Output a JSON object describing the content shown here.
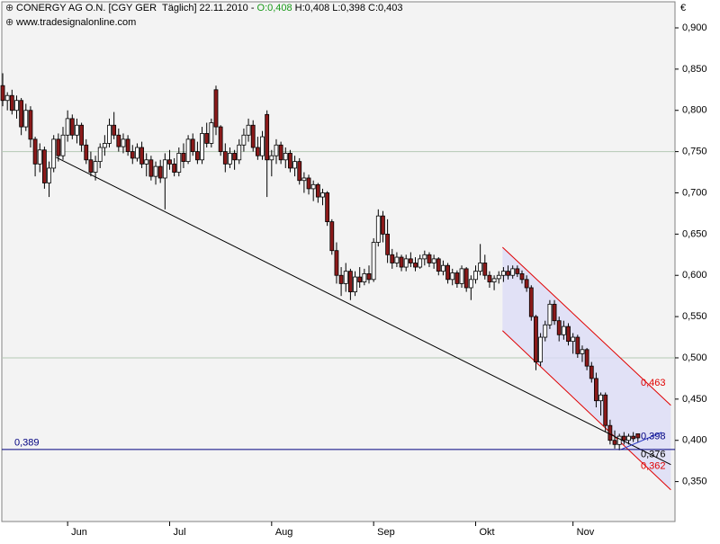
{
  "chart_data": {
    "type": "candlestick",
    "title": "CONERGY AG O.N. [CGY GER  Täglich] 22.11.2010 -",
    "title_open": "O:0,408",
    "title_rest": "H:0,408 L:0,398 C:0,403",
    "subtitle": "www.tradesignalonline.com",
    "currency": "€",
    "up_color": "#ffffff",
    "down_color": "#8b1a1a",
    "ohlc": [
      [
        0.83,
        0.845,
        0.805,
        0.812
      ],
      [
        0.812,
        0.822,
        0.8,
        0.818
      ],
      [
        0.818,
        0.825,
        0.795,
        0.8
      ],
      [
        0.8,
        0.818,
        0.79,
        0.812
      ],
      [
        0.812,
        0.815,
        0.77,
        0.78
      ],
      [
        0.78,
        0.808,
        0.775,
        0.8
      ],
      [
        0.8,
        0.805,
        0.755,
        0.765
      ],
      [
        0.765,
        0.768,
        0.72,
        0.735
      ],
      [
        0.735,
        0.76,
        0.725,
        0.752
      ],
      [
        0.752,
        0.756,
        0.705,
        0.712
      ],
      [
        0.712,
        0.738,
        0.695,
        0.73
      ],
      [
        0.73,
        0.77,
        0.725,
        0.765
      ],
      [
        0.765,
        0.772,
        0.738,
        0.745
      ],
      [
        0.745,
        0.78,
        0.74,
        0.77
      ],
      [
        0.77,
        0.8,
        0.762,
        0.79
      ],
      [
        0.79,
        0.795,
        0.765,
        0.77
      ],
      [
        0.77,
        0.79,
        0.76,
        0.782
      ],
      [
        0.782,
        0.785,
        0.75,
        0.758
      ],
      [
        0.758,
        0.765,
        0.735,
        0.74
      ],
      [
        0.74,
        0.75,
        0.72,
        0.725
      ],
      [
        0.725,
        0.745,
        0.715,
        0.738
      ],
      [
        0.738,
        0.76,
        0.73,
        0.755
      ],
      [
        0.755,
        0.77,
        0.745,
        0.76
      ],
      [
        0.76,
        0.79,
        0.755,
        0.782
      ],
      [
        0.782,
        0.798,
        0.765,
        0.77
      ],
      [
        0.77,
        0.778,
        0.75,
        0.756
      ],
      [
        0.756,
        0.772,
        0.748,
        0.765
      ],
      [
        0.765,
        0.77,
        0.745,
        0.75
      ],
      [
        0.75,
        0.758,
        0.735,
        0.742
      ],
      [
        0.742,
        0.76,
        0.738,
        0.755
      ],
      [
        0.755,
        0.762,
        0.73,
        0.735
      ],
      [
        0.735,
        0.748,
        0.72,
        0.74
      ],
      [
        0.74,
        0.745,
        0.715,
        0.72
      ],
      [
        0.72,
        0.738,
        0.71,
        0.732
      ],
      [
        0.732,
        0.74,
        0.712,
        0.718
      ],
      [
        0.718,
        0.748,
        0.68,
        0.74
      ],
      [
        0.74,
        0.752,
        0.728,
        0.735
      ],
      [
        0.735,
        0.742,
        0.72,
        0.725
      ],
      [
        0.725,
        0.755,
        0.72,
        0.748
      ],
      [
        0.748,
        0.76,
        0.73,
        0.738
      ],
      [
        0.738,
        0.77,
        0.735,
        0.765
      ],
      [
        0.765,
        0.772,
        0.745,
        0.75
      ],
      [
        0.75,
        0.762,
        0.735,
        0.74
      ],
      [
        0.74,
        0.78,
        0.735,
        0.772
      ],
      [
        0.772,
        0.785,
        0.755,
        0.76
      ],
      [
        0.76,
        0.79,
        0.755,
        0.785
      ],
      [
        0.825,
        0.83,
        0.77,
        0.78
      ],
      [
        0.78,
        0.782,
        0.745,
        0.75
      ],
      [
        0.75,
        0.76,
        0.725,
        0.735
      ],
      [
        0.735,
        0.755,
        0.73,
        0.748
      ],
      [
        0.748,
        0.752,
        0.728,
        0.74
      ],
      [
        0.74,
        0.765,
        0.735,
        0.758
      ],
      [
        0.758,
        0.778,
        0.75,
        0.77
      ],
      [
        0.77,
        0.79,
        0.762,
        0.782
      ],
      [
        0.782,
        0.788,
        0.75,
        0.755
      ],
      [
        0.755,
        0.768,
        0.74,
        0.745
      ],
      [
        0.745,
        0.775,
        0.74,
        0.768
      ],
      [
        0.795,
        0.8,
        0.695,
        0.74
      ],
      [
        0.74,
        0.752,
        0.72,
        0.745
      ],
      [
        0.745,
        0.765,
        0.735,
        0.758
      ],
      [
        0.758,
        0.762,
        0.735,
        0.74
      ],
      [
        0.74,
        0.755,
        0.73,
        0.748
      ],
      [
        0.748,
        0.752,
        0.725,
        0.73
      ],
      [
        0.73,
        0.745,
        0.72,
        0.738
      ],
      [
        0.738,
        0.742,
        0.71,
        0.715
      ],
      [
        0.715,
        0.725,
        0.7,
        0.718
      ],
      [
        0.718,
        0.722,
        0.698,
        0.705
      ],
      [
        0.705,
        0.715,
        0.69,
        0.71
      ],
      [
        0.71,
        0.712,
        0.688,
        0.695
      ],
      [
        0.695,
        0.705,
        0.685,
        0.7
      ],
      [
        0.7,
        0.702,
        0.66,
        0.665
      ],
      [
        0.665,
        0.668,
        0.625,
        0.63
      ],
      [
        0.63,
        0.64,
        0.59,
        0.6
      ],
      [
        0.6,
        0.61,
        0.575,
        0.59
      ],
      [
        0.59,
        0.615,
        0.58,
        0.605
      ],
      [
        0.605,
        0.608,
        0.57,
        0.58
      ],
      [
        0.58,
        0.605,
        0.575,
        0.598
      ],
      [
        0.598,
        0.61,
        0.585,
        0.592
      ],
      [
        0.592,
        0.608,
        0.588,
        0.602
      ],
      [
        0.602,
        0.612,
        0.59,
        0.595
      ],
      [
        0.595,
        0.645,
        0.592,
        0.64
      ],
      [
        0.64,
        0.68,
        0.635,
        0.672
      ],
      [
        0.672,
        0.678,
        0.64,
        0.65
      ],
      [
        0.65,
        0.668,
        0.615,
        0.625
      ],
      [
        0.625,
        0.632,
        0.608,
        0.615
      ],
      [
        0.615,
        0.628,
        0.61,
        0.622
      ],
      [
        0.622,
        0.625,
        0.605,
        0.61
      ],
      [
        0.61,
        0.625,
        0.605,
        0.62
      ],
      [
        0.62,
        0.628,
        0.61,
        0.615
      ],
      [
        0.615,
        0.622,
        0.605,
        0.61
      ],
      [
        0.61,
        0.625,
        0.608,
        0.62
      ],
      [
        0.62,
        0.63,
        0.612,
        0.625
      ],
      [
        0.625,
        0.628,
        0.61,
        0.615
      ],
      [
        0.615,
        0.625,
        0.608,
        0.62
      ],
      [
        0.62,
        0.622,
        0.6,
        0.605
      ],
      [
        0.605,
        0.618,
        0.6,
        0.612
      ],
      [
        0.612,
        0.615,
        0.59,
        0.595
      ],
      [
        0.595,
        0.608,
        0.588,
        0.603
      ],
      [
        0.603,
        0.606,
        0.585,
        0.59
      ],
      [
        0.59,
        0.612,
        0.585,
        0.608
      ],
      [
        0.608,
        0.61,
        0.58,
        0.585
      ],
      [
        0.585,
        0.6,
        0.57,
        0.595
      ],
      [
        0.595,
        0.612,
        0.59,
        0.605
      ],
      [
        0.605,
        0.638,
        0.6,
        0.615
      ],
      [
        0.615,
        0.625,
        0.595,
        0.6
      ],
      [
        0.6,
        0.605,
        0.585,
        0.592
      ],
      [
        0.592,
        0.6,
        0.582,
        0.596
      ],
      [
        0.596,
        0.605,
        0.59,
        0.6
      ],
      [
        0.6,
        0.61,
        0.592,
        0.605
      ],
      [
        0.605,
        0.612,
        0.595,
        0.6
      ],
      [
        0.6,
        0.612,
        0.596,
        0.608
      ],
      [
        0.608,
        0.612,
        0.598,
        0.602
      ],
      [
        0.602,
        0.606,
        0.59,
        0.595
      ],
      [
        0.595,
        0.6,
        0.58,
        0.585
      ],
      [
        0.585,
        0.588,
        0.545,
        0.55
      ],
      [
        0.55,
        0.552,
        0.485,
        0.495
      ],
      [
        0.495,
        0.53,
        0.49,
        0.525
      ],
      [
        0.525,
        0.545,
        0.52,
        0.54
      ],
      [
        0.54,
        0.57,
        0.535,
        0.565
      ],
      [
        0.565,
        0.57,
        0.54,
        0.545
      ],
      [
        0.545,
        0.55,
        0.52,
        0.528
      ],
      [
        0.528,
        0.545,
        0.522,
        0.538
      ],
      [
        0.538,
        0.542,
        0.515,
        0.52
      ],
      [
        0.52,
        0.53,
        0.505,
        0.525
      ],
      [
        0.525,
        0.528,
        0.5,
        0.505
      ],
      [
        0.505,
        0.515,
        0.495,
        0.51
      ],
      [
        0.51,
        0.512,
        0.485,
        0.49
      ],
      [
        0.49,
        0.495,
        0.47,
        0.475
      ],
      [
        0.475,
        0.482,
        0.44,
        0.448
      ],
      [
        0.448,
        0.458,
        0.43,
        0.455
      ],
      [
        0.455,
        0.458,
        0.41,
        0.418
      ],
      [
        0.418,
        0.425,
        0.395,
        0.4
      ],
      [
        0.4,
        0.412,
        0.39,
        0.395
      ],
      [
        0.395,
        0.408,
        0.388,
        0.405
      ],
      [
        0.405,
        0.41,
        0.395,
        0.4
      ],
      [
        0.4,
        0.408,
        0.395,
        0.405
      ],
      [
        0.405,
        0.41,
        0.398,
        0.402
      ],
      [
        0.408,
        0.408,
        0.398,
        0.403
      ]
    ],
    "xlim": [
      -0.2,
      145
    ],
    "xticks": [
      {
        "value": 14,
        "label": "Jun"
      },
      {
        "value": 36,
        "label": "Jul"
      },
      {
        "value": 58,
        "label": "Aug"
      },
      {
        "value": 80,
        "label": "Sep"
      },
      {
        "value": 102,
        "label": "Okt"
      },
      {
        "value": 123,
        "label": "Nov"
      }
    ],
    "ylim": [
      0.3016,
      0.9316
    ],
    "yticks": [
      {
        "value": 0.35,
        "label": "0,350"
      },
      {
        "value": 0.4,
        "label": "0,400"
      },
      {
        "value": 0.45,
        "label": "0,450"
      },
      {
        "value": 0.5,
        "label": "0,500"
      },
      {
        "value": 0.55,
        "label": "0,550"
      },
      {
        "value": 0.6,
        "label": "0,600"
      },
      {
        "value": 0.65,
        "label": "0,650"
      },
      {
        "value": 0.7,
        "label": "0,700"
      },
      {
        "value": 0.75,
        "label": "0,750"
      },
      {
        "value": 0.8,
        "label": "0,800"
      },
      {
        "value": 0.85,
        "label": "0,850"
      },
      {
        "value": 0.9,
        "label": "0,900"
      }
    ],
    "hlines": {
      "values": [
        0.5,
        0.75
      ],
      "color": "#b4c8b4"
    },
    "level": {
      "value": 0.389,
      "label": "0,389",
      "color": "#000080"
    },
    "channel": {
      "color": "#e00000",
      "fill": "#dcdcf6",
      "upper": [
        [
          107.8,
          0.634
        ],
        [
          144.1,
          0.4425
        ]
      ],
      "lower": [
        [
          107.8,
          0.533
        ],
        [
          144.1,
          0.34
        ]
      ]
    },
    "lines": [
      {
        "color": "#000000",
        "points": [
          [
            11.5,
            0.7431
          ],
          [
            144.1,
            0.3706
          ]
        ]
      },
      {
        "color": "#2030c0",
        "points": [
          [
            133.4,
            0.389
          ],
          [
            142.1,
            0.4097
          ]
        ]
      }
    ],
    "line_labels": [
      {
        "value": 0.463,
        "label": "0,463",
        "color": "#e00000"
      },
      {
        "value": 0.398,
        "label": "0,398",
        "color": "#000080"
      },
      {
        "value": 0.376,
        "label": "0,376",
        "color": "#000000"
      },
      {
        "value": 0.362,
        "label": "0,362",
        "color": "#e00000"
      }
    ]
  }
}
